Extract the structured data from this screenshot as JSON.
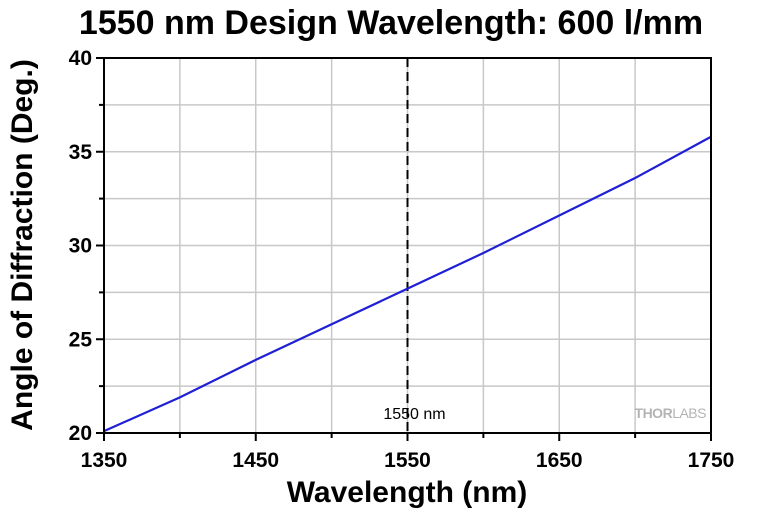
{
  "chart_data": {
    "type": "line",
    "title": "1550 nm Design Wavelength: 600 l/mm",
    "xlabel": "Wavelength (nm)",
    "ylabel": "Angle of Diffraction (Deg.)",
    "xlim": [
      1350,
      1750
    ],
    "ylim": [
      20,
      40
    ],
    "x_ticks": [
      1350,
      1450,
      1550,
      1650,
      1750
    ],
    "y_ticks": [
      20,
      25,
      30,
      35,
      40
    ],
    "grid": true,
    "series": [
      {
        "color": "#1f1fd6",
        "x": [
          1350,
          1400,
          1450,
          1500,
          1550,
          1600,
          1650,
          1700,
          1750
        ],
        "y": [
          20.1,
          21.9,
          23.9,
          25.8,
          27.7,
          29.6,
          31.6,
          33.6,
          35.8
        ]
      }
    ],
    "annotations": [
      {
        "type": "vertical-line",
        "x": 1550,
        "style": "dashed",
        "label": "1550 nm"
      }
    ],
    "watermark": {
      "thor": "THOR",
      "labs": "LABS"
    }
  }
}
